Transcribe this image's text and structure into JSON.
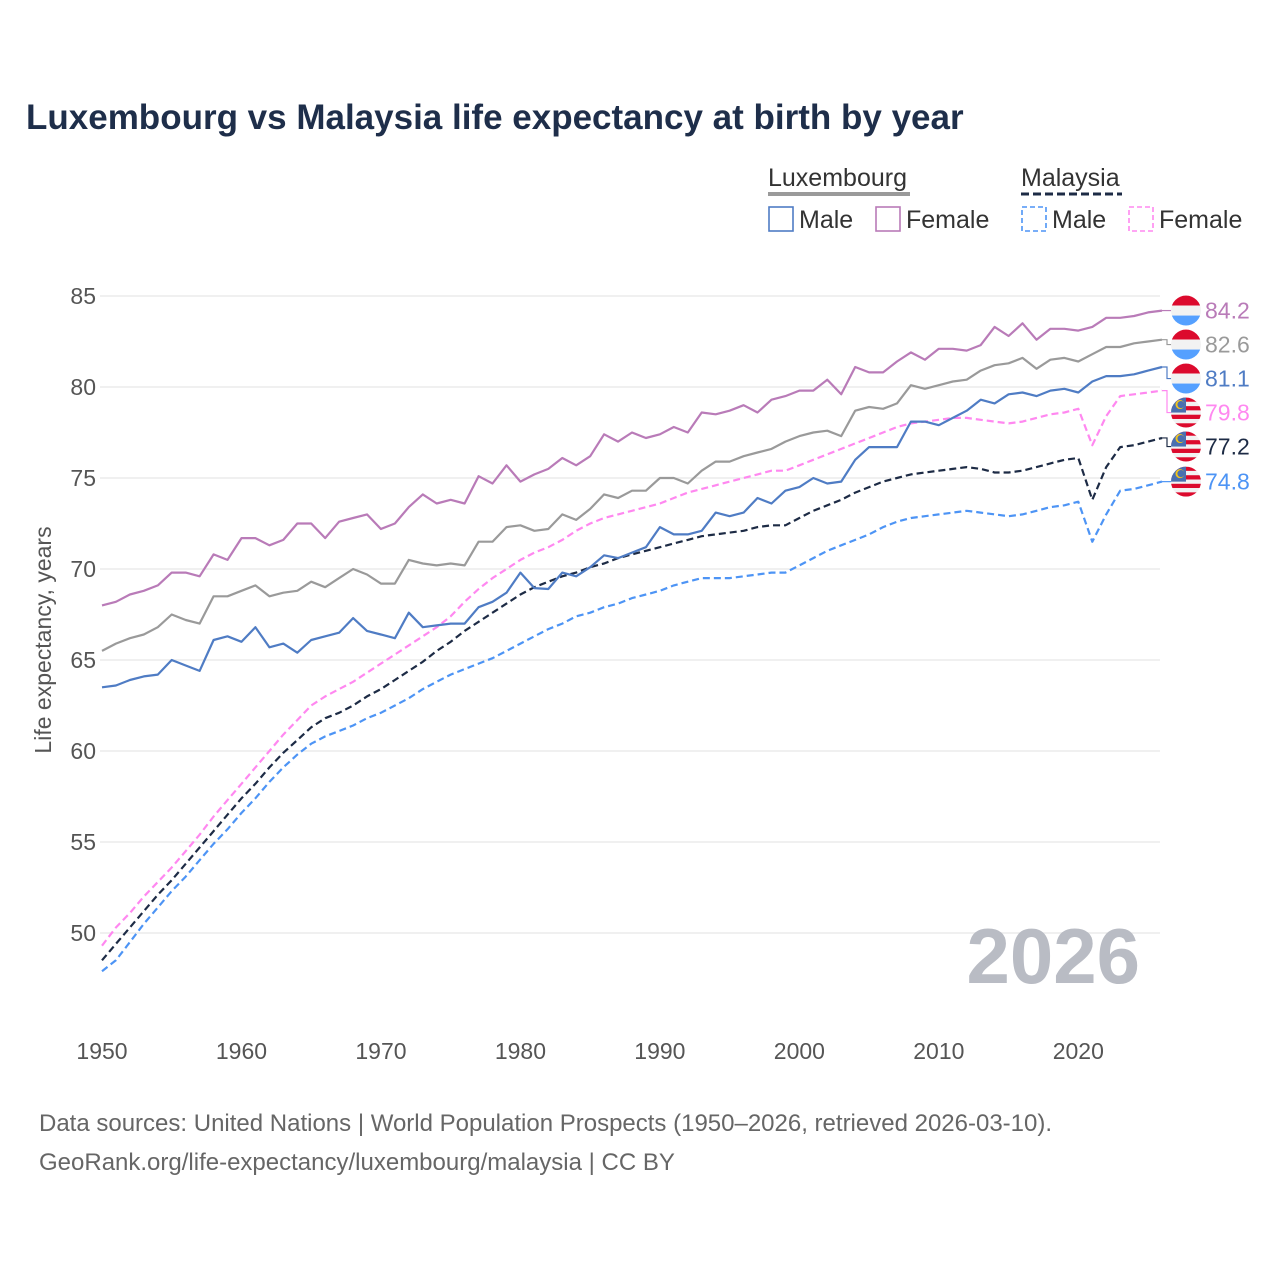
{
  "chart_data": {
    "type": "line",
    "title": "Luxembourg vs Malaysia life expectancy at birth by year",
    "xlabel": "",
    "ylabel": "Life expectancy, years",
    "xlim": [
      1950,
      2026
    ],
    "ylim": [
      45.5,
      86
    ],
    "xticks": [
      "1950",
      "1960",
      "1970",
      "1980",
      "1990",
      "2000",
      "2010",
      "2020"
    ],
    "yticks": [
      "50",
      "55",
      "60",
      "65",
      "70",
      "75",
      "80",
      "85"
    ],
    "grid": true,
    "current_year": "2026",
    "legend": {
      "placement": "top-right",
      "groups": [
        {
          "name": "Luxembourg",
          "items": [
            "Male",
            "Female"
          ]
        },
        {
          "name": "Malaysia",
          "items": [
            "Male",
            "Female"
          ]
        }
      ]
    },
    "x_start": 1950,
    "series": [
      {
        "key": "lux_female",
        "country": "Luxembourg",
        "sex": "Female",
        "color": "#b97bb8",
        "dashed": false,
        "flag": "luxembourg",
        "end_label": "84.2",
        "values": [
          68.0,
          68.2,
          68.6,
          68.8,
          69.1,
          69.8,
          69.8,
          69.6,
          70.8,
          70.5,
          71.7,
          71.7,
          71.3,
          71.6,
          72.5,
          72.5,
          71.7,
          72.6,
          72.8,
          73.0,
          72.2,
          72.5,
          73.4,
          74.1,
          73.6,
          73.8,
          73.6,
          75.1,
          74.7,
          75.7,
          74.8,
          75.2,
          75.5,
          76.1,
          75.7,
          76.2,
          77.4,
          77.0,
          77.5,
          77.2,
          77.4,
          77.8,
          77.5,
          78.6,
          78.5,
          78.7,
          79.0,
          78.6,
          79.3,
          79.5,
          79.8,
          79.8,
          80.4,
          79.6,
          81.1,
          80.8,
          80.8,
          81.4,
          81.9,
          81.5,
          82.1,
          82.1,
          82.0,
          82.3,
          83.3,
          82.8,
          83.5,
          82.6,
          83.2,
          83.2,
          83.1,
          83.3,
          83.8,
          83.8,
          83.9,
          84.1,
          84.2
        ]
      },
      {
        "key": "lux_total",
        "country": "Luxembourg",
        "sex": "Total",
        "color": "#9a9a9a",
        "dashed": false,
        "flag": "luxembourg",
        "end_label": "82.6",
        "values": [
          65.5,
          65.9,
          66.2,
          66.4,
          66.8,
          67.5,
          67.2,
          67.0,
          68.5,
          68.5,
          68.8,
          69.1,
          68.5,
          68.7,
          68.8,
          69.3,
          69.0,
          69.5,
          70.0,
          69.7,
          69.2,
          69.2,
          70.5,
          70.3,
          70.2,
          70.3,
          70.2,
          71.5,
          71.5,
          72.3,
          72.4,
          72.1,
          72.2,
          73.0,
          72.7,
          73.3,
          74.1,
          73.9,
          74.3,
          74.3,
          75.0,
          75.0,
          74.7,
          75.4,
          75.9,
          75.9,
          76.2,
          76.4,
          76.6,
          77.0,
          77.3,
          77.5,
          77.6,
          77.3,
          78.7,
          78.9,
          78.8,
          79.1,
          80.1,
          79.9,
          80.1,
          80.3,
          80.4,
          80.9,
          81.2,
          81.3,
          81.6,
          81.0,
          81.5,
          81.6,
          81.4,
          81.8,
          82.2,
          82.2,
          82.4,
          82.5,
          82.6
        ]
      },
      {
        "key": "lux_male",
        "country": "Luxembourg",
        "sex": "Male",
        "color": "#4f7cc4",
        "dashed": false,
        "flag": "luxembourg",
        "end_label": "81.1",
        "values": [
          63.5,
          63.6,
          63.9,
          64.1,
          64.2,
          65.0,
          64.7,
          64.4,
          66.1,
          66.3,
          66.0,
          66.8,
          65.7,
          65.9,
          65.4,
          66.1,
          66.3,
          66.5,
          67.3,
          66.6,
          66.4,
          66.2,
          67.6,
          66.8,
          66.9,
          67.0,
          67.0,
          67.9,
          68.2,
          68.7,
          69.8,
          68.95,
          68.9,
          69.8,
          69.6,
          70.1,
          70.75,
          70.6,
          70.9,
          71.2,
          72.3,
          71.9,
          71.9,
          72.1,
          73.1,
          72.9,
          73.1,
          73.9,
          73.6,
          74.3,
          74.5,
          75.0,
          74.7,
          74.8,
          76.0,
          76.7,
          76.7,
          76.7,
          78.1,
          78.1,
          77.9,
          78.3,
          78.7,
          79.3,
          79.1,
          79.6,
          79.7,
          79.5,
          79.8,
          79.9,
          79.7,
          80.3,
          80.6,
          80.6,
          80.7,
          80.9,
          81.1
        ]
      },
      {
        "key": "mys_female",
        "country": "Malaysia",
        "sex": "Female",
        "color": "#ff88f0",
        "dashed": true,
        "flag": "malaysia",
        "end_label": "79.8",
        "values": [
          49.3,
          50.3,
          51.1,
          52.0,
          52.8,
          53.6,
          54.5,
          55.4,
          56.4,
          57.3,
          58.2,
          59.1,
          60.0,
          60.9,
          61.7,
          62.5,
          63.0,
          63.4,
          63.8,
          64.3,
          64.8,
          65.3,
          65.8,
          66.3,
          66.8,
          67.4,
          68.2,
          68.9,
          69.5,
          70.0,
          70.5,
          70.9,
          71.2,
          71.6,
          72.1,
          72.5,
          72.8,
          73.0,
          73.2,
          73.4,
          73.6,
          73.9,
          74.2,
          74.4,
          74.6,
          74.8,
          75.0,
          75.2,
          75.4,
          75.4,
          75.7,
          76.0,
          76.3,
          76.6,
          76.9,
          77.2,
          77.5,
          77.8,
          78.0,
          78.1,
          78.2,
          78.3,
          78.3,
          78.2,
          78.1,
          78.0,
          78.1,
          78.3,
          78.5,
          78.6,
          78.8,
          76.8,
          78.4,
          79.5,
          79.6,
          79.7,
          79.8
        ]
      },
      {
        "key": "mys_total",
        "country": "Malaysia",
        "sex": "Total",
        "color": "#1d2b45",
        "dashed": true,
        "flag": "malaysia",
        "end_label": "77.2",
        "values": [
          48.5,
          49.4,
          50.3,
          51.2,
          52.1,
          52.9,
          53.8,
          54.7,
          55.6,
          56.5,
          57.4,
          58.2,
          59.1,
          59.9,
          60.6,
          61.3,
          61.8,
          62.1,
          62.5,
          63.0,
          63.4,
          63.9,
          64.4,
          64.9,
          65.5,
          66.0,
          66.6,
          67.1,
          67.6,
          68.1,
          68.6,
          69.0,
          69.3,
          69.6,
          69.8,
          70.1,
          70.3,
          70.6,
          70.8,
          71.0,
          71.2,
          71.4,
          71.6,
          71.8,
          71.9,
          72.0,
          72.1,
          72.3,
          72.4,
          72.4,
          72.8,
          73.2,
          73.5,
          73.8,
          74.2,
          74.5,
          74.8,
          75.0,
          75.2,
          75.3,
          75.4,
          75.5,
          75.6,
          75.5,
          75.3,
          75.3,
          75.4,
          75.6,
          75.8,
          76.0,
          76.1,
          73.8,
          75.6,
          76.7,
          76.8,
          77.0,
          77.2
        ]
      },
      {
        "key": "mys_male",
        "country": "Malaysia",
        "sex": "Male",
        "color": "#4d94f5",
        "dashed": true,
        "flag": "malaysia",
        "end_label": "74.8",
        "values": [
          47.9,
          48.5,
          49.5,
          50.5,
          51.4,
          52.3,
          53.1,
          54.0,
          54.9,
          55.7,
          56.6,
          57.4,
          58.3,
          59.1,
          59.8,
          60.4,
          60.8,
          61.1,
          61.4,
          61.8,
          62.1,
          62.5,
          62.9,
          63.4,
          63.8,
          64.2,
          64.5,
          64.8,
          65.1,
          65.5,
          65.9,
          66.3,
          66.7,
          67.0,
          67.4,
          67.6,
          67.9,
          68.1,
          68.4,
          68.6,
          68.8,
          69.1,
          69.3,
          69.5,
          69.5,
          69.5,
          69.6,
          69.7,
          69.8,
          69.8,
          70.2,
          70.6,
          71.0,
          71.3,
          71.6,
          71.9,
          72.3,
          72.6,
          72.8,
          72.9,
          73.0,
          73.1,
          73.2,
          73.1,
          73.0,
          72.9,
          73.0,
          73.2,
          73.4,
          73.5,
          73.7,
          71.5,
          73.0,
          74.3,
          74.4,
          74.6,
          74.8
        ]
      }
    ]
  },
  "footer": {
    "line1": "Data sources: United Nations | World Population Prospects (1950–2026, retrieved 2026-03-10).",
    "line2": "GeoRank.org/life-expectancy/luxembourg/malaysia | CC BY"
  },
  "colors": {
    "title": "#1e2e4a",
    "grid": "#e6e6e6",
    "flag_red": "#dc0a2d",
    "flag_blue": "#55a0ff",
    "mys_blue": "#4a6fb0",
    "mys_yellow": "#f5c518"
  }
}
